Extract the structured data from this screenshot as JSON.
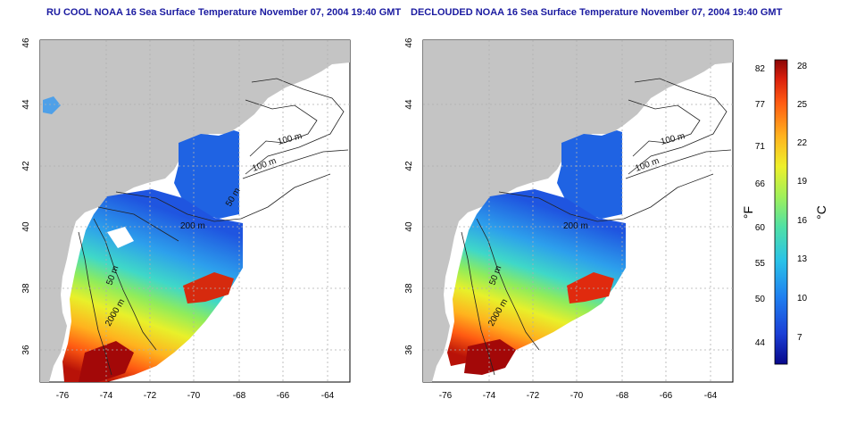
{
  "panels": [
    {
      "title": "RU COOL NOAA 16 Sea Surface Temperature November 07, 2004 19:40 GMT",
      "variant": "raw",
      "contour_labels": [
        "100 m",
        "100 m",
        "50 m",
        "200 m",
        "50 m",
        "2000 m"
      ]
    },
    {
      "title": "DECLOUDED NOAA 16 Sea Surface Temperature November 07, 2004 19:40 GMT",
      "variant": "declouded",
      "contour_labels": [
        "100 m",
        "100 m",
        "200 m",
        "50 m",
        "2000 m"
      ]
    }
  ],
  "axes": {
    "lon_ticks": [
      "-76",
      "-74",
      "-72",
      "-70",
      "-68",
      "-66",
      "-64"
    ],
    "lat_ticks": [
      "46",
      "44",
      "42",
      "40",
      "38",
      "36"
    ]
  },
  "colorbar": {
    "fahrenheit_label": "°F",
    "celsius_label": "°C",
    "fahrenheit_ticks": [
      "82",
      "77",
      "71",
      "66",
      "60",
      "55",
      "50",
      "44"
    ],
    "celsius_ticks": [
      "28",
      "25",
      "22",
      "19",
      "16",
      "13",
      "10",
      "7"
    ],
    "colors": [
      "#08088a",
      "#1b3fd6",
      "#1f7ff0",
      "#29c2e8",
      "#4fe0a6",
      "#9ff05a",
      "#eef02a",
      "#ffb21e",
      "#ff5a12",
      "#d81e0c",
      "#8a0606"
    ]
  },
  "colors": {
    "land": "#c4c4c4",
    "ocean": "#ffffff",
    "title": "#1a1aa0",
    "contour": "#222222",
    "grid": "#b0b0b0"
  }
}
